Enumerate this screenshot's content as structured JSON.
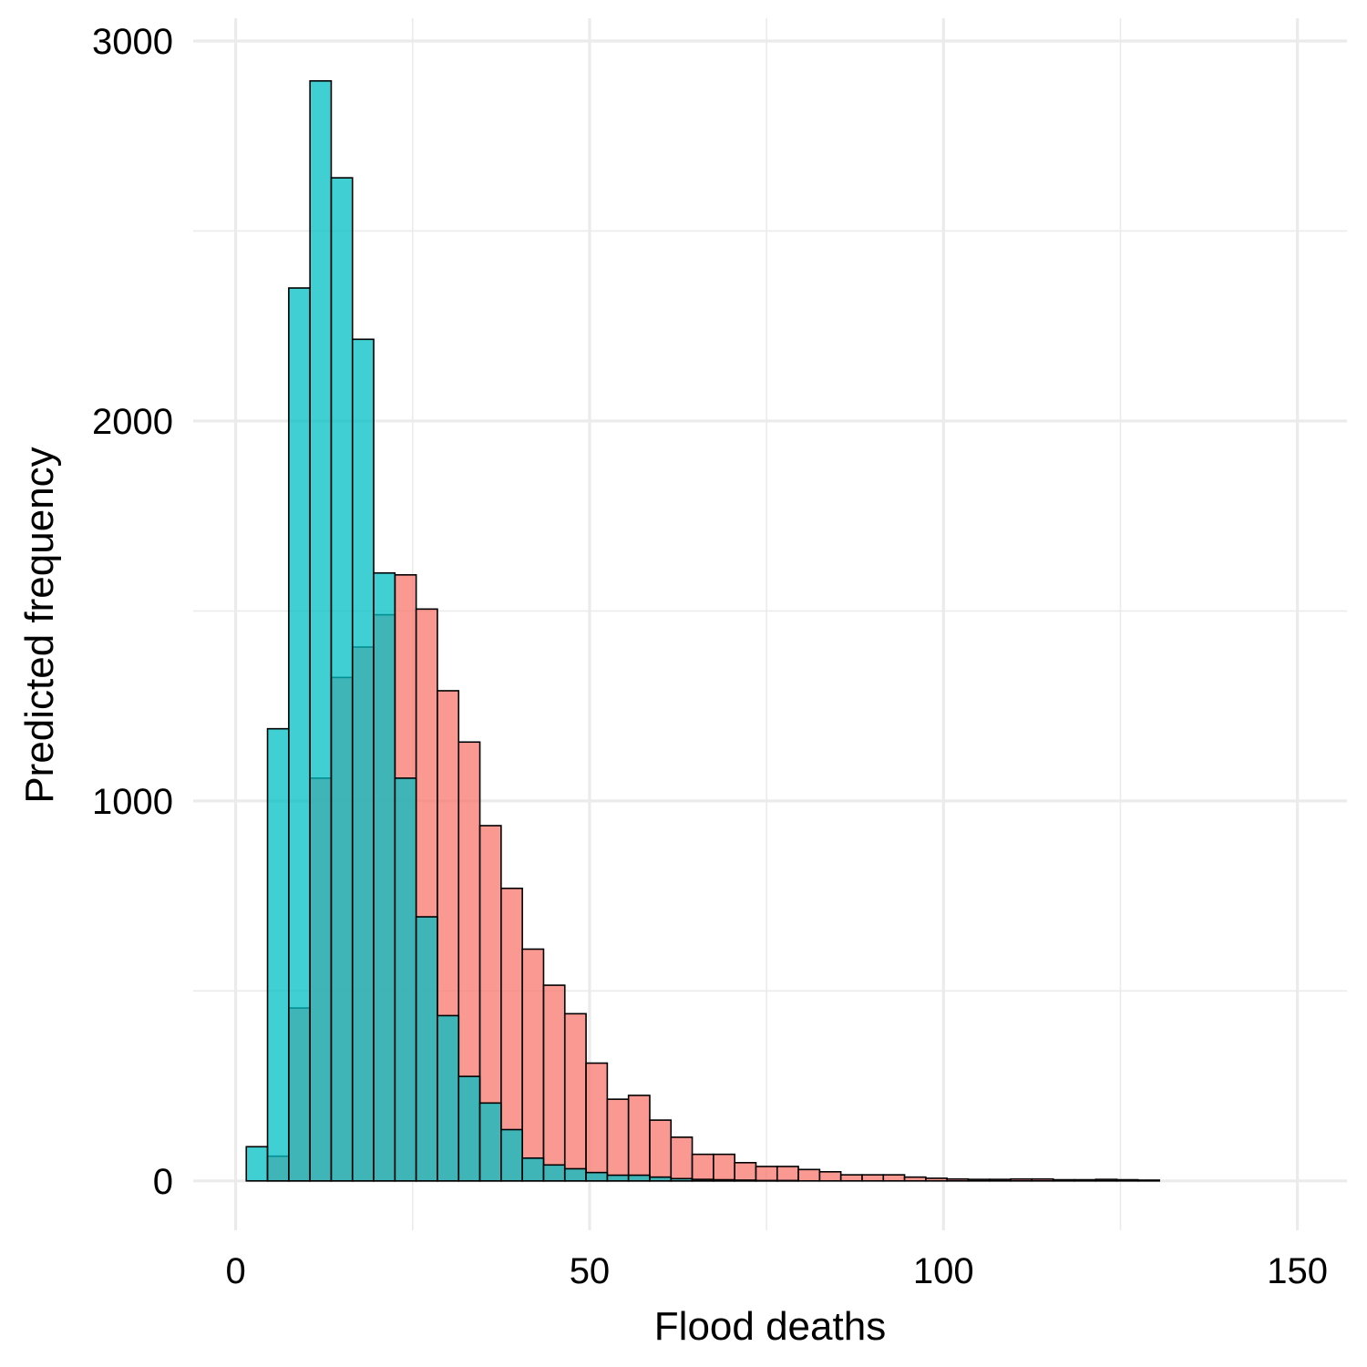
{
  "chart_data": {
    "type": "bar",
    "xlabel": "Flood deaths",
    "ylabel": "Predicted frequency",
    "xlim": [
      -6,
      157
    ],
    "ylim": [
      -130,
      3060
    ],
    "x_ticks": [
      0,
      50,
      100,
      150
    ],
    "y_ticks": [
      0,
      1000,
      2000,
      3000
    ],
    "x_minor": [
      25,
      75,
      125
    ],
    "y_minor": [
      500,
      1500,
      2500
    ],
    "grid": true,
    "legend": "none",
    "bin_width": 3,
    "colors": {
      "red": "#F8766D",
      "blue": "#00BFC4",
      "blue_fill": "#4FA8C9",
      "grid": "#EBEBEB"
    },
    "series": [
      {
        "color": "#F8766D",
        "bins": [
          {
            "x": 6,
            "y": 65
          },
          {
            "x": 9,
            "y": 455
          },
          {
            "x": 12,
            "y": 1060
          },
          {
            "x": 15,
            "y": 1325
          },
          {
            "x": 18,
            "y": 1405
          },
          {
            "x": 21,
            "y": 1490
          },
          {
            "x": 24,
            "y": 1595
          },
          {
            "x": 27,
            "y": 1505
          },
          {
            "x": 30,
            "y": 1290
          },
          {
            "x": 33,
            "y": 1155
          },
          {
            "x": 36,
            "y": 935
          },
          {
            "x": 39,
            "y": 770
          },
          {
            "x": 42,
            "y": 610
          },
          {
            "x": 45,
            "y": 515
          },
          {
            "x": 48,
            "y": 440
          },
          {
            "x": 51,
            "y": 310
          },
          {
            "x": 54,
            "y": 215
          },
          {
            "x": 57,
            "y": 225
          },
          {
            "x": 60,
            "y": 160
          },
          {
            "x": 63,
            "y": 115
          },
          {
            "x": 66,
            "y": 70
          },
          {
            "x": 69,
            "y": 70
          },
          {
            "x": 72,
            "y": 48
          },
          {
            "x": 75,
            "y": 38
          },
          {
            "x": 78,
            "y": 38
          },
          {
            "x": 81,
            "y": 30
          },
          {
            "x": 84,
            "y": 24
          },
          {
            "x": 87,
            "y": 16
          },
          {
            "x": 90,
            "y": 16
          },
          {
            "x": 93,
            "y": 16
          },
          {
            "x": 96,
            "y": 10
          },
          {
            "x": 99,
            "y": 7
          },
          {
            "x": 102,
            "y": 5
          },
          {
            "x": 105,
            "y": 4
          },
          {
            "x": 108,
            "y": 4
          },
          {
            "x": 111,
            "y": 5
          },
          {
            "x": 114,
            "y": 5
          },
          {
            "x": 117,
            "y": 3
          },
          {
            "x": 120,
            "y": 3
          },
          {
            "x": 123,
            "y": 4
          },
          {
            "x": 126,
            "y": 3
          },
          {
            "x": 129,
            "y": 2
          }
        ]
      },
      {
        "color": "#00BFC4",
        "bins": [
          {
            "x": 3,
            "y": 90
          },
          {
            "x": 6,
            "y": 1190
          },
          {
            "x": 9,
            "y": 2350
          },
          {
            "x": 12,
            "y": 2895
          },
          {
            "x": 15,
            "y": 2640
          },
          {
            "x": 18,
            "y": 2215
          },
          {
            "x": 21,
            "y": 1600
          },
          {
            "x": 24,
            "y": 1060
          },
          {
            "x": 27,
            "y": 695
          },
          {
            "x": 30,
            "y": 435
          },
          {
            "x": 33,
            "y": 275
          },
          {
            "x": 36,
            "y": 205
          },
          {
            "x": 39,
            "y": 135
          },
          {
            "x": 42,
            "y": 60
          },
          {
            "x": 45,
            "y": 42
          },
          {
            "x": 48,
            "y": 32
          },
          {
            "x": 51,
            "y": 22
          },
          {
            "x": 54,
            "y": 15
          },
          {
            "x": 57,
            "y": 15
          },
          {
            "x": 60,
            "y": 10
          },
          {
            "x": 63,
            "y": 6
          },
          {
            "x": 66,
            "y": 4
          },
          {
            "x": 69,
            "y": 3
          },
          {
            "x": 72,
            "y": 2
          },
          {
            "x": 75,
            "y": 1
          },
          {
            "x": 78,
            "y": 1
          }
        ]
      }
    ]
  }
}
